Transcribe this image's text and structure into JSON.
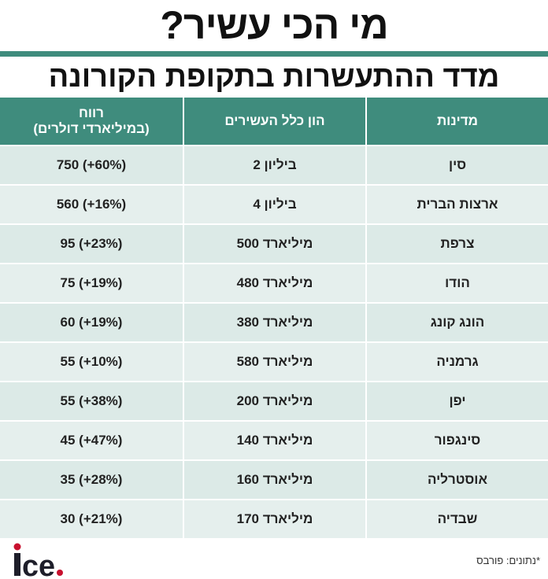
{
  "title": "מי הכי עשיר?",
  "subtitle": "מדד ההתעשרות בתקופת הקורונה",
  "columns": {
    "country": "מדינות",
    "wealth": "הון כלל העשירים",
    "profit_line1": "רווח",
    "profit_line2": "(במיליארדי דולרים)"
  },
  "rows": [
    {
      "country": "סין",
      "wealth": "2 ביליון",
      "profit": "750 (+60%)"
    },
    {
      "country": "ארצות הברית",
      "wealth": "4 ביליון",
      "profit": "560 (+16%)"
    },
    {
      "country": "צרפת",
      "wealth": "500 מיליארד",
      "profit": "95 (+23%)"
    },
    {
      "country": "הודו",
      "wealth": "480 מיליארד",
      "profit": "75 (+19%)"
    },
    {
      "country": "הונג קונג",
      "wealth": "380 מיליארד",
      "profit": "60 (+19%)"
    },
    {
      "country": "גרמניה",
      "wealth": "580 מיליארד",
      "profit": "55 (+10%)"
    },
    {
      "country": "יפן",
      "wealth": "200 מיליארד",
      "profit": "55 (+38%)"
    },
    {
      "country": "סינגפור",
      "wealth": "140 מיליארד",
      "profit": "45 (+47%)"
    },
    {
      "country": "אוסטרליה",
      "wealth": "160 מיליארד",
      "profit": "35 (+28%)"
    },
    {
      "country": "שבדיה",
      "wealth": "170 מיליארד",
      "profit": "30 (+21%)"
    }
  ],
  "footer": {
    "source": "*נתונים: פורבס",
    "logo": "ice."
  },
  "colors": {
    "accent": "#3f8c7d",
    "row_a": "#dceae7",
    "row_b": "#e5efed",
    "logo_dot": "#c8102e"
  }
}
